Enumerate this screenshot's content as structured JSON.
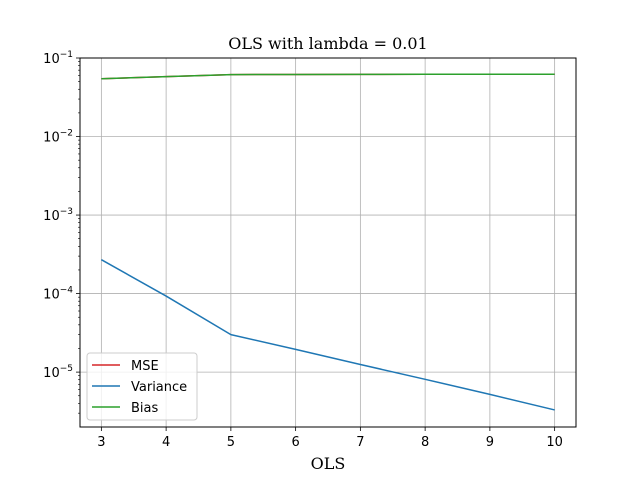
{
  "chart_data": {
    "type": "line",
    "title": "OLS with lambda = 0.01",
    "xlabel": "OLS",
    "ylabel": "",
    "yscale": "log",
    "xlim": [
      2.67,
      10.33
    ],
    "ylim": [
      2e-06,
      0.1
    ],
    "x": [
      3,
      4,
      5,
      6,
      7,
      8,
      9,
      10
    ],
    "xticks": [
      3,
      4,
      5,
      6,
      7,
      8,
      9,
      10
    ],
    "xtick_labels": [
      "3",
      "4",
      "5",
      "6",
      "7",
      "8",
      "9",
      "10"
    ],
    "yticks": [
      {
        "value": 0.1,
        "base": "10",
        "exp": "−1"
      },
      {
        "value": 0.01,
        "base": "10",
        "exp": "−2"
      },
      {
        "value": 0.001,
        "base": "10",
        "exp": "−3"
      },
      {
        "value": 0.0001,
        "base": "10",
        "exp": "−4"
      },
      {
        "value": 1e-05,
        "base": "10",
        "exp": "−5"
      }
    ],
    "grid": true,
    "legend_position": "lower-left",
    "series": [
      {
        "name": "MSE",
        "color": "#d62728",
        "values": [
          0.0545,
          0.058,
          0.0615,
          0.0617,
          0.0618,
          0.062,
          0.0621,
          0.0622
        ]
      },
      {
        "name": "Variance",
        "color": "#1f77b4",
        "values": [
          0.00027,
          9.3e-05,
          3e-05,
          1.95e-05,
          1.25e-05,
          8.1e-06,
          5.2e-06,
          3.3e-06
        ]
      },
      {
        "name": "Bias",
        "color": "#2ca02c",
        "values": [
          0.0545,
          0.058,
          0.0615,
          0.0617,
          0.0618,
          0.062,
          0.0621,
          0.0622
        ]
      }
    ]
  }
}
